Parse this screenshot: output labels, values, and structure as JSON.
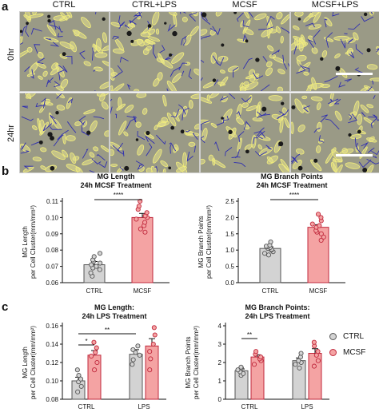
{
  "panels": {
    "a": {
      "letter": "a",
      "columns": [
        "CTRL",
        "CTRL+LPS",
        "MCSF",
        "MCSF+LPS"
      ],
      "rows": [
        "0hr",
        "24hr"
      ],
      "image_colors": {
        "background": "#9a9a86",
        "cells": "#e7e38c",
        "outline": "#2f2fb0"
      }
    },
    "b": {
      "letter": "b"
    },
    "c": {
      "letter": "c",
      "legend": [
        {
          "label": "CTRL",
          "fill": "#d3d3d3",
          "stroke": "#555555"
        },
        {
          "label": "MCSF",
          "fill": "#f4a3a3",
          "stroke": "#c0283c"
        }
      ]
    }
  },
  "chart_data": [
    {
      "id": "b-length",
      "type": "bar",
      "title": [
        "MG Length",
        "24h MCSF Treatment"
      ],
      "ylabel": [
        "MG Length",
        "per Cell Cluster(mm/mm²)"
      ],
      "categories": [
        "CTRL",
        "MCSF"
      ],
      "values": [
        0.071,
        0.1
      ],
      "errors": [
        0.002,
        0.0025
      ],
      "colors": [
        "#d3d3d3",
        "#f4a3a3"
      ],
      "points": [
        [
          0.064,
          0.066,
          0.068,
          0.069,
          0.07,
          0.071,
          0.072,
          0.073,
          0.074,
          0.076,
          0.078
        ],
        [
          0.091,
          0.093,
          0.095,
          0.097,
          0.099,
          0.1,
          0.101,
          0.103,
          0.105,
          0.107,
          0.11
        ]
      ],
      "ylim": [
        0.06,
        0.11
      ],
      "yticks": [
        "0.06",
        "0.07",
        "0.08",
        "0.09",
        "0.10",
        "0.11"
      ],
      "yticks_values": [
        0.06,
        0.07,
        0.08,
        0.09,
        0.1,
        0.11
      ],
      "significance": [
        {
          "from": 0,
          "to": 1,
          "label": "****"
        }
      ]
    },
    {
      "id": "b-branch",
      "type": "bar",
      "title": [
        "MG Branch Points",
        "24h MCSF Treatment"
      ],
      "ylabel": [
        "MG Branch Points",
        "per Cell Cluster(mm/mm²)"
      ],
      "categories": [
        "CTRL",
        "MCSF"
      ],
      "values": [
        1.05,
        1.7
      ],
      "errors": [
        0.05,
        0.08
      ],
      "colors": [
        "#d3d3d3",
        "#f4a3a3"
      ],
      "points": [
        [
          0.85,
          0.9,
          0.95,
          1.0,
          1.02,
          1.05,
          1.08,
          1.1,
          1.12,
          1.15,
          1.25
        ],
        [
          1.3,
          1.4,
          1.5,
          1.55,
          1.6,
          1.7,
          1.75,
          1.8,
          1.9,
          2.0,
          2.1
        ]
      ],
      "ylim": [
        0.0,
        2.5
      ],
      "yticks": [
        "0.0",
        "0.5",
        "1.0",
        "1.5",
        "2.0",
        "2.5"
      ],
      "yticks_values": [
        0.0,
        0.5,
        1.0,
        1.5,
        2.0,
        2.5
      ],
      "significance": [
        {
          "from": 0,
          "to": 1,
          "label": "****"
        }
      ]
    },
    {
      "id": "c-length",
      "type": "bar",
      "title": [
        "MG Length:",
        "24h LPS Treatment"
      ],
      "ylabel": [
        "MG Length",
        "per Cell Cluster(mm/mm²)"
      ],
      "categories": [
        "CTRL",
        "LPS"
      ],
      "series": [
        {
          "name": "CTRL",
          "values": [
            0.1,
            0.129
          ],
          "errors": [
            0.004,
            0.005
          ],
          "points": [
            [
              0.088,
              0.094,
              0.099,
              0.102,
              0.106,
              0.112
            ],
            [
              0.118,
              0.123,
              0.128,
              0.131,
              0.134,
              0.138
            ]
          ]
        },
        {
          "name": "MCSF",
          "values": [
            0.128,
            0.138
          ],
          "errors": [
            0.005,
            0.008
          ],
          "points": [
            [
              0.112,
              0.12,
              0.127,
              0.131,
              0.136,
              0.142
            ],
            [
              0.112,
              0.124,
              0.132,
              0.14,
              0.15,
              0.158
            ]
          ]
        }
      ],
      "colors": [
        "#d3d3d3",
        "#f4a3a3"
      ],
      "ylim": [
        0.08,
        0.16
      ],
      "yticks": [
        "0.08",
        "0.10",
        "0.12",
        "0.14",
        "0.16"
      ],
      "yticks_values": [
        0.08,
        0.1,
        0.12,
        0.14,
        0.16
      ],
      "significance": [
        {
          "from": [
            0,
            0
          ],
          "to": [
            0,
            1
          ],
          "label": "*"
        },
        {
          "from": [
            0,
            0
          ],
          "to": [
            1,
            0
          ],
          "label": "**"
        }
      ]
    },
    {
      "id": "c-branch",
      "type": "bar",
      "title": [
        "MG Branch Points:",
        "24h LPS Treatment"
      ],
      "ylabel": [
        "MG Branch Points",
        "per Cell Cluster(mm/mm²)"
      ],
      "categories": [
        "CTRL",
        "LPS"
      ],
      "series": [
        {
          "name": "CTRL",
          "values": [
            1.55,
            2.1
          ],
          "errors": [
            0.1,
            0.15
          ],
          "points": [
            [
              1.3,
              1.4,
              1.5,
              1.6,
              1.7,
              1.75
            ],
            [
              1.7,
              1.9,
              2.0,
              2.1,
              2.3,
              2.5
            ]
          ]
        },
        {
          "name": "MCSF",
          "values": [
            2.3,
            2.5
          ],
          "errors": [
            0.12,
            0.25
          ],
          "points": [
            [
              1.9,
              2.1,
              2.2,
              2.3,
              2.45,
              2.6
            ],
            [
              1.8,
              2.1,
              2.4,
              2.6,
              2.9,
              3.1
            ]
          ]
        }
      ],
      "colors": [
        "#d3d3d3",
        "#f4a3a3"
      ],
      "ylim": [
        0,
        4
      ],
      "yticks": [
        "0",
        "1",
        "2",
        "3",
        "4"
      ],
      "yticks_values": [
        0,
        1,
        2,
        3,
        4
      ],
      "significance": [
        {
          "from": [
            0,
            0
          ],
          "to": [
            0,
            1
          ],
          "label": "**"
        }
      ]
    }
  ]
}
